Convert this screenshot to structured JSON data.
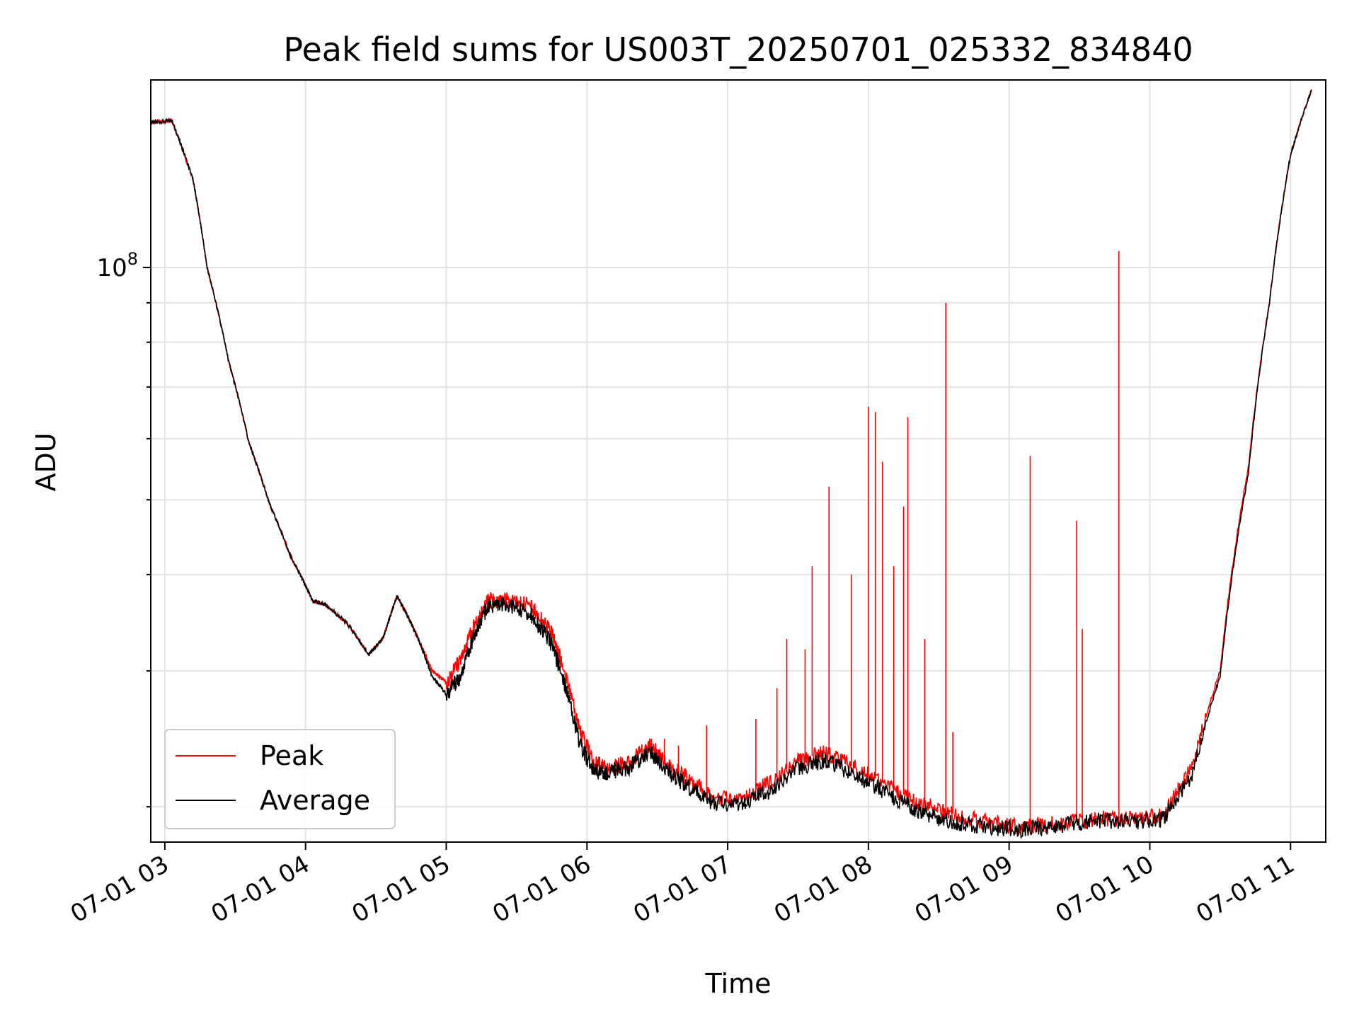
{
  "chart_data": {
    "type": "line",
    "title": "Peak field sums for US003T_20250701_025332_834840",
    "xlabel": "Time",
    "ylabel": "ADU",
    "y_scale": "log",
    "grid": true,
    "legend_position": "lower-left",
    "x_tick_labels": [
      "07-01 03",
      "07-01 04",
      "07-01 05",
      "07-01 06",
      "07-01 07",
      "07-01 08",
      "07-01 09",
      "07-01 10",
      "07-01 11"
    ],
    "y_tick_label": {
      "base": "10",
      "exp": "8"
    },
    "colors": {
      "peak": "#ff0000",
      "average": "#000000",
      "grid": "#e3e3e3"
    },
    "series": [
      {
        "name": "Peak",
        "color": "#ff0000",
        "x_hours": [
          2.9,
          3.05,
          3.2,
          3.3,
          3.45,
          3.6,
          3.75,
          3.9,
          4.05,
          4.15,
          4.3,
          4.45,
          4.55,
          4.65,
          4.72,
          4.8,
          4.9,
          5.0,
          5.1,
          5.2,
          5.3,
          5.45,
          5.6,
          5.75,
          5.85,
          5.95,
          6.05,
          6.15,
          6.3,
          6.45,
          6.6,
          6.75,
          6.9,
          7.1,
          7.3,
          7.5,
          7.7,
          7.9,
          8.1,
          8.3,
          8.5,
          8.7,
          8.9,
          9.1,
          9.3,
          9.5,
          9.7,
          9.9,
          10.1,
          10.3,
          10.5,
          10.7,
          10.85,
          11.0,
          11.15
        ],
        "values_e7": [
          15.4,
          15.5,
          13.0,
          10.0,
          7.6,
          5.9,
          4.9,
          4.2,
          3.7,
          3.65,
          3.45,
          3.15,
          3.3,
          3.75,
          3.55,
          3.3,
          3.0,
          2.9,
          3.1,
          3.45,
          3.7,
          3.7,
          3.65,
          3.35,
          2.95,
          2.5,
          2.28,
          2.25,
          2.28,
          2.4,
          2.25,
          2.15,
          2.05,
          2.05,
          2.15,
          2.3,
          2.35,
          2.25,
          2.15,
          2.05,
          1.98,
          1.94,
          1.9,
          1.88,
          1.9,
          1.92,
          1.93,
          1.93,
          1.95,
          2.25,
          3.0,
          5.5,
          9.0,
          14.0,
          17.0
        ]
      },
      {
        "name": "Average",
        "color": "#000000",
        "x_hours": [
          2.9,
          3.05,
          3.2,
          3.3,
          3.45,
          3.6,
          3.75,
          3.9,
          4.05,
          4.15,
          4.3,
          4.45,
          4.55,
          4.65,
          4.72,
          4.8,
          4.9,
          5.0,
          5.1,
          5.2,
          5.3,
          5.45,
          5.6,
          5.75,
          5.85,
          5.95,
          6.05,
          6.15,
          6.3,
          6.45,
          6.6,
          6.75,
          6.9,
          7.1,
          7.3,
          7.5,
          7.7,
          7.9,
          8.1,
          8.3,
          8.5,
          8.7,
          8.9,
          9.1,
          9.3,
          9.5,
          9.7,
          9.9,
          10.1,
          10.3,
          10.5,
          10.7,
          10.85,
          11.0,
          11.15
        ],
        "values_e7": [
          15.4,
          15.5,
          13.0,
          10.0,
          7.6,
          5.9,
          4.9,
          4.2,
          3.7,
          3.65,
          3.45,
          3.15,
          3.3,
          3.75,
          3.55,
          3.3,
          2.95,
          2.8,
          2.95,
          3.35,
          3.65,
          3.65,
          3.55,
          3.25,
          2.85,
          2.4,
          2.22,
          2.22,
          2.25,
          2.35,
          2.2,
          2.1,
          2.02,
          2.02,
          2.1,
          2.25,
          2.3,
          2.2,
          2.1,
          2.0,
          1.93,
          1.9,
          1.88,
          1.87,
          1.89,
          1.91,
          1.92,
          1.91,
          1.93,
          2.2,
          2.95,
          5.4,
          9.0,
          14.0,
          17.0
        ]
      }
    ],
    "spikes_peak": [
      {
        "x_hours": 6.55,
        "value_e7": 2.45
      },
      {
        "x_hours": 6.65,
        "value_e7": 2.4
      },
      {
        "x_hours": 6.85,
        "value_e7": 2.55
      },
      {
        "x_hours": 7.2,
        "value_e7": 2.6
      },
      {
        "x_hours": 7.35,
        "value_e7": 2.85
      },
      {
        "x_hours": 7.42,
        "value_e7": 3.3
      },
      {
        "x_hours": 7.55,
        "value_e7": 3.2
      },
      {
        "x_hours": 7.6,
        "value_e7": 4.1
      },
      {
        "x_hours": 7.72,
        "value_e7": 5.2
      },
      {
        "x_hours": 7.88,
        "value_e7": 4.0
      },
      {
        "x_hours": 8.0,
        "value_e7": 6.6
      },
      {
        "x_hours": 8.05,
        "value_e7": 6.5
      },
      {
        "x_hours": 8.1,
        "value_e7": 5.6
      },
      {
        "x_hours": 8.18,
        "value_e7": 4.1
      },
      {
        "x_hours": 8.25,
        "value_e7": 4.9
      },
      {
        "x_hours": 8.28,
        "value_e7": 6.4
      },
      {
        "x_hours": 8.4,
        "value_e7": 3.3
      },
      {
        "x_hours": 8.55,
        "value_e7": 9.0
      },
      {
        "x_hours": 8.6,
        "value_e7": 2.5
      },
      {
        "x_hours": 9.15,
        "value_e7": 5.7
      },
      {
        "x_hours": 9.48,
        "value_e7": 4.7
      },
      {
        "x_hours": 9.52,
        "value_e7": 3.4
      },
      {
        "x_hours": 9.78,
        "value_e7": 10.5
      },
      {
        "x_hours": 10.2,
        "value_e7": 2.15
      }
    ]
  },
  "legend": {
    "peak_label": "Peak",
    "average_label": "Average"
  }
}
